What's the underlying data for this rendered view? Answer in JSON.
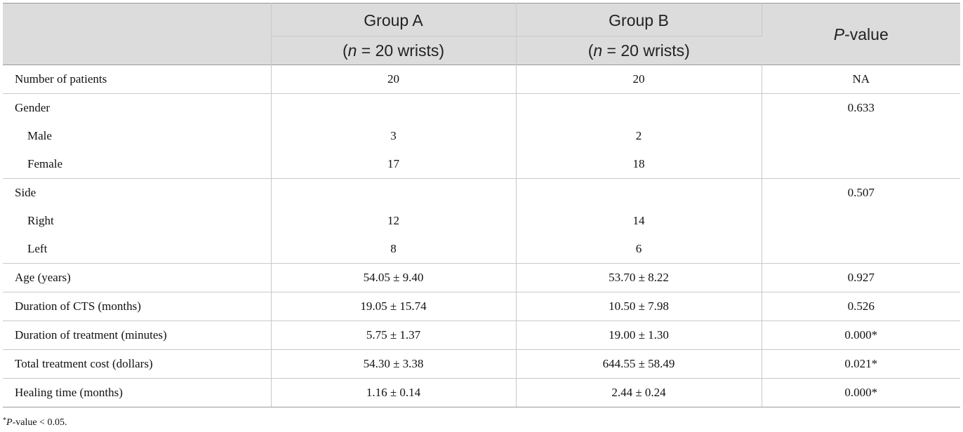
{
  "header": {
    "col0": "",
    "group_a_title": "Group A",
    "group_a_n_prefix": "(",
    "group_a_n_var": "n",
    "group_a_n_suffix": " = 20 wrists)",
    "group_b_title": "Group B",
    "group_b_n_prefix": "(",
    "group_b_n_var": "n",
    "group_b_n_suffix": " = 20 wrists)",
    "pvalue_var": "P",
    "pvalue_suffix": "-value"
  },
  "rows": [
    {
      "label": "Number of patients",
      "a": "20",
      "b": "20",
      "p": "NA"
    },
    {
      "label": "Gender",
      "a": "",
      "b": "",
      "p": "0.633"
    },
    {
      "label": "Male",
      "a": "3",
      "b": "2",
      "p": ""
    },
    {
      "label": "Female",
      "a": "17",
      "b": "18",
      "p": ""
    },
    {
      "label": "Side",
      "a": "",
      "b": "",
      "p": "0.507"
    },
    {
      "label": "Right",
      "a": "12",
      "b": "14",
      "p": ""
    },
    {
      "label": "Left",
      "a": "8",
      "b": "6",
      "p": ""
    },
    {
      "label": "Age (years)",
      "a": "54.05 ± 9.40",
      "b": "53.70 ± 8.22",
      "p": "0.927"
    },
    {
      "label": "Duration of CTS (months)",
      "a": "19.05 ± 15.74",
      "b": "10.50 ± 7.98",
      "p": "0.526"
    },
    {
      "label": "Duration of treatment (minutes)",
      "a": "5.75 ± 1.37",
      "b": "19.00 ± 1.30",
      "p": "0.000*"
    },
    {
      "label": "Total treatment cost (dollars)",
      "a": "54.30 ± 3.38",
      "b": "644.55 ± 58.49",
      "p": "0.021*"
    },
    {
      "label": "Healing time (months)",
      "a": "1.16 ± 0.14",
      "b": "2.44 ± 0.24",
      "p": "0.000*"
    }
  ],
  "footnote": {
    "marker": "*",
    "var": "P",
    "text": "-value < 0.05."
  }
}
